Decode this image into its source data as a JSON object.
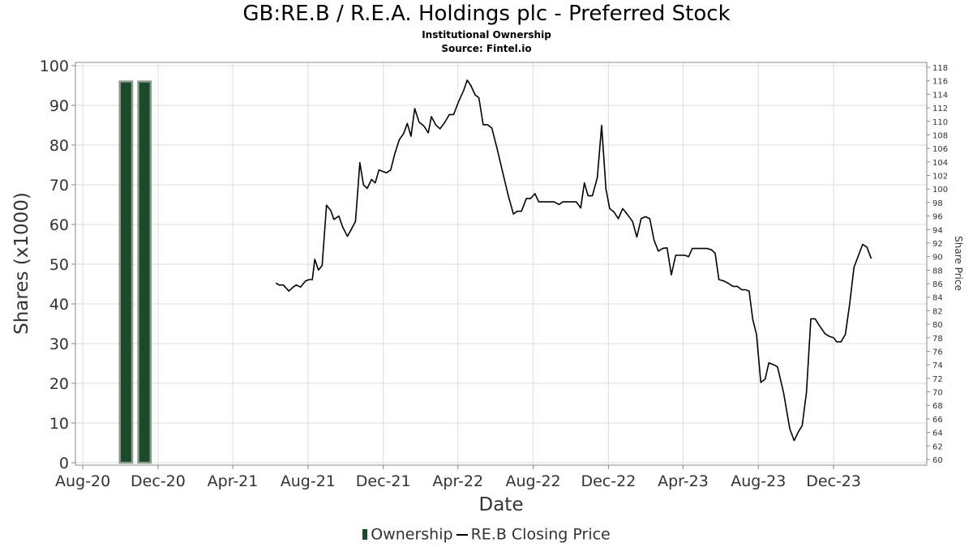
{
  "header": {
    "title": "GB:RE.B / R.E.A. Holdings plc - Preferred Stock",
    "subtitle1": "Institutional Ownership",
    "subtitle2": "Source: Fintel.io"
  },
  "legend": {
    "ownership": "Ownership",
    "price": "RE.B Closing Price"
  },
  "colors": {
    "bar_fill": "#1a4a2a",
    "bar_edge": "#8a9a8a",
    "line": "#000000",
    "grid": "#dddddd"
  },
  "chart_data": {
    "type": "bar+line",
    "xlabel": "Date",
    "ylabel": "Shares (x1000)",
    "y2label": "Share Price",
    "ylim": [
      0,
      100
    ],
    "y2lim": [
      60,
      118
    ],
    "yticks": [
      0,
      10,
      20,
      30,
      40,
      50,
      60,
      70,
      80,
      90,
      100
    ],
    "y2ticks": [
      60,
      62,
      64,
      66,
      68,
      70,
      72,
      74,
      76,
      78,
      80,
      82,
      84,
      86,
      88,
      90,
      92,
      94,
      96,
      98,
      100,
      102,
      104,
      106,
      108,
      110,
      112,
      114,
      116,
      118
    ],
    "xlim": [
      "2020-07-20",
      "2024-04-30"
    ],
    "xticks": [
      {
        "label": "Aug-20",
        "date": "2020-08-01"
      },
      {
        "label": "Dec-20",
        "date": "2020-12-01"
      },
      {
        "label": "Apr-21",
        "date": "2021-04-01"
      },
      {
        "label": "Aug-21",
        "date": "2021-08-01"
      },
      {
        "label": "Dec-21",
        "date": "2021-12-01"
      },
      {
        "label": "Apr-22",
        "date": "2022-04-01"
      },
      {
        "label": "Aug-22",
        "date": "2022-08-01"
      },
      {
        "label": "Dec-22",
        "date": "2022-12-01"
      },
      {
        "label": "Apr-23",
        "date": "2023-04-01"
      },
      {
        "label": "Aug-23",
        "date": "2023-08-01"
      },
      {
        "label": "Dec-23",
        "date": "2023-12-01"
      }
    ],
    "grid": true,
    "legend_position": "bottom",
    "ownership": [
      {
        "start": "2020-09-30",
        "end": "2020-10-20",
        "value": 96
      },
      {
        "start": "2020-10-30",
        "end": "2020-11-19",
        "value": 96
      }
    ],
    "price": [
      [
        "2021-06-10",
        86.1
      ],
      [
        "2021-06-15",
        85.8
      ],
      [
        "2021-06-22",
        85.8
      ],
      [
        "2021-07-01",
        84.9
      ],
      [
        "2021-07-08",
        85.5
      ],
      [
        "2021-07-13",
        85.8
      ],
      [
        "2021-07-20",
        85.5
      ],
      [
        "2021-07-28",
        86.4
      ],
      [
        "2021-08-03",
        86.6
      ],
      [
        "2021-08-08",
        86.6
      ],
      [
        "2021-08-12",
        89.6
      ],
      [
        "2021-08-18",
        88.0
      ],
      [
        "2021-08-24",
        88.7
      ],
      [
        "2021-08-31",
        97.6
      ],
      [
        "2021-09-07",
        96.8
      ],
      [
        "2021-09-12",
        95.5
      ],
      [
        "2021-09-20",
        96.0
      ],
      [
        "2021-09-26",
        94.4
      ],
      [
        "2021-10-04",
        93.0
      ],
      [
        "2021-10-10",
        94.0
      ],
      [
        "2021-10-17",
        95.2
      ],
      [
        "2021-10-24",
        103.9
      ],
      [
        "2021-10-30",
        100.6
      ],
      [
        "2021-11-05",
        100.1
      ],
      [
        "2021-11-12",
        101.4
      ],
      [
        "2021-11-18",
        100.9
      ],
      [
        "2021-11-24",
        102.8
      ],
      [
        "2021-12-06",
        102.4
      ],
      [
        "2021-12-13",
        102.8
      ],
      [
        "2021-12-20",
        105.3
      ],
      [
        "2021-12-27",
        107.3
      ],
      [
        "2022-01-03",
        108.2
      ],
      [
        "2022-01-09",
        109.7
      ],
      [
        "2022-01-15",
        107.8
      ],
      [
        "2022-01-21",
        111.9
      ],
      [
        "2022-01-28",
        109.9
      ],
      [
        "2022-02-05",
        109.3
      ],
      [
        "2022-02-12",
        108.3
      ],
      [
        "2022-02-17",
        110.7
      ],
      [
        "2022-02-24",
        109.5
      ],
      [
        "2022-03-03",
        108.9
      ],
      [
        "2022-03-11",
        109.9
      ],
      [
        "2022-03-18",
        111.0
      ],
      [
        "2022-03-25",
        111.0
      ],
      [
        "2022-04-02",
        112.9
      ],
      [
        "2022-04-10",
        114.5
      ],
      [
        "2022-04-16",
        116.1
      ],
      [
        "2022-04-22",
        115.3
      ],
      [
        "2022-04-29",
        113.9
      ],
      [
        "2022-05-05",
        113.5
      ],
      [
        "2022-05-12",
        109.5
      ],
      [
        "2022-05-19",
        109.5
      ],
      [
        "2022-05-26",
        109.0
      ],
      [
        "2022-06-04",
        105.8
      ],
      [
        "2022-06-13",
        102.3
      ],
      [
        "2022-06-22",
        98.9
      ],
      [
        "2022-06-30",
        96.3
      ],
      [
        "2022-07-06",
        96.7
      ],
      [
        "2022-07-13",
        96.7
      ],
      [
        "2022-07-21",
        98.6
      ],
      [
        "2022-07-28",
        98.6
      ],
      [
        "2022-08-04",
        99.3
      ],
      [
        "2022-08-10",
        98.1
      ],
      [
        "2022-08-19",
        98.1
      ],
      [
        "2022-08-28",
        98.1
      ],
      [
        "2022-09-04",
        98.1
      ],
      [
        "2022-09-12",
        97.7
      ],
      [
        "2022-09-18",
        98.1
      ],
      [
        "2022-09-26",
        98.1
      ],
      [
        "2022-10-03",
        98.1
      ],
      [
        "2022-10-10",
        98.1
      ],
      [
        "2022-10-17",
        97.2
      ],
      [
        "2022-10-23",
        100.9
      ],
      [
        "2022-10-29",
        99.0
      ],
      [
        "2022-11-05",
        99.0
      ],
      [
        "2022-11-13",
        101.7
      ],
      [
        "2022-11-20",
        109.4
      ],
      [
        "2022-11-27",
        100.0
      ],
      [
        "2022-12-03",
        97.1
      ],
      [
        "2022-12-10",
        96.6
      ],
      [
        "2022-12-17",
        95.6
      ],
      [
        "2022-12-24",
        97.1
      ],
      [
        "2023-01-01",
        96.2
      ],
      [
        "2023-01-09",
        95.2
      ],
      [
        "2023-01-16",
        92.9
      ],
      [
        "2023-01-23",
        95.6
      ],
      [
        "2023-01-30",
        95.9
      ],
      [
        "2023-02-06",
        95.6
      ],
      [
        "2023-02-13",
        92.4
      ],
      [
        "2023-02-20",
        90.8
      ],
      [
        "2023-02-27",
        91.2
      ],
      [
        "2023-03-06",
        91.3
      ],
      [
        "2023-03-13",
        87.3
      ],
      [
        "2023-03-20",
        90.2
      ],
      [
        "2023-03-27",
        90.2
      ],
      [
        "2023-04-04",
        90.2
      ],
      [
        "2023-04-10",
        90.0
      ],
      [
        "2023-04-16",
        91.2
      ],
      [
        "2023-04-23",
        91.2
      ],
      [
        "2023-05-03",
        91.2
      ],
      [
        "2023-05-10",
        91.2
      ],
      [
        "2023-05-17",
        91.0
      ],
      [
        "2023-05-23",
        90.5
      ],
      [
        "2023-05-29",
        86.6
      ],
      [
        "2023-06-06",
        86.4
      ],
      [
        "2023-06-14",
        86.0
      ],
      [
        "2023-06-21",
        85.6
      ],
      [
        "2023-06-28",
        85.6
      ],
      [
        "2023-07-05",
        85.1
      ],
      [
        "2023-07-11",
        85.1
      ],
      [
        "2023-07-17",
        84.9
      ],
      [
        "2023-07-23",
        80.7
      ],
      [
        "2023-07-29",
        78.5
      ],
      [
        "2023-08-05",
        71.4
      ],
      [
        "2023-08-12",
        71.9
      ],
      [
        "2023-08-18",
        74.3
      ],
      [
        "2023-08-26",
        74.0
      ],
      [
        "2023-09-01",
        73.7
      ],
      [
        "2023-09-11",
        69.8
      ],
      [
        "2023-09-21",
        64.5
      ],
      [
        "2023-09-28",
        62.8
      ],
      [
        "2023-10-05",
        64.1
      ],
      [
        "2023-10-11",
        65.0
      ],
      [
        "2023-10-18",
        69.9
      ],
      [
        "2023-10-25",
        80.8
      ],
      [
        "2023-11-01",
        80.8
      ],
      [
        "2023-11-08",
        79.8
      ],
      [
        "2023-11-17",
        78.6
      ],
      [
        "2023-11-24",
        78.2
      ],
      [
        "2023-12-01",
        78.0
      ],
      [
        "2023-12-06",
        77.4
      ],
      [
        "2023-12-13",
        77.4
      ],
      [
        "2023-12-20",
        78.5
      ],
      [
        "2023-12-27",
        83.0
      ],
      [
        "2024-01-03",
        88.4
      ],
      [
        "2024-01-10",
        90.1
      ],
      [
        "2024-01-17",
        91.8
      ],
      [
        "2024-01-24",
        91.4
      ],
      [
        "2024-01-31",
        89.7
      ]
    ]
  }
}
